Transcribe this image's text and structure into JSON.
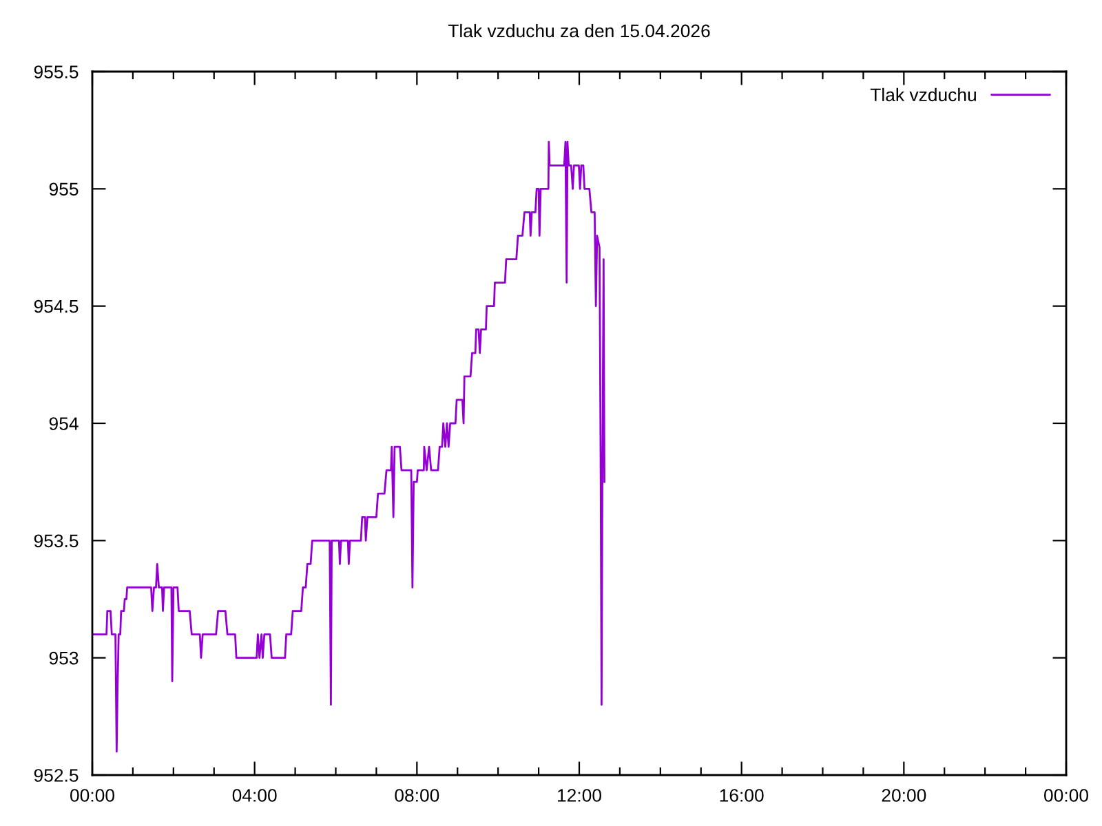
{
  "chart_data": {
    "type": "line",
    "title": "Tlak vzduchu za den 15.04.2026",
    "x": [
      0.0,
      0.35,
      0.37,
      0.45,
      0.48,
      0.57,
      0.6,
      0.62,
      0.65,
      0.69,
      0.71,
      0.78,
      0.8,
      0.84,
      0.86,
      1.45,
      1.48,
      1.52,
      1.57,
      1.6,
      1.64,
      1.72,
      1.74,
      1.77,
      1.95,
      1.97,
      2.0,
      2.1,
      2.13,
      2.4,
      2.45,
      2.65,
      2.68,
      2.72,
      3.05,
      3.1,
      3.28,
      3.33,
      3.52,
      3.55,
      4.05,
      4.08,
      4.12,
      4.17,
      4.2,
      4.24,
      4.38,
      4.42,
      4.75,
      4.78,
      4.9,
      4.94,
      5.15,
      5.19,
      5.26,
      5.3,
      5.38,
      5.42,
      5.85,
      5.88,
      5.9,
      6.08,
      6.1,
      6.13,
      6.3,
      6.32,
      6.35,
      6.62,
      6.65,
      6.72,
      6.74,
      6.78,
      7.0,
      7.04,
      7.2,
      7.25,
      7.36,
      7.38,
      7.42,
      7.45,
      7.58,
      7.62,
      7.86,
      7.89,
      7.92,
      8.0,
      8.02,
      8.17,
      8.18,
      8.24,
      8.3,
      8.35,
      8.52,
      8.56,
      8.62,
      8.65,
      8.7,
      8.74,
      8.78,
      8.82,
      8.95,
      8.98,
      9.12,
      9.15,
      9.17,
      9.32,
      9.36,
      9.44,
      9.46,
      9.52,
      9.55,
      9.58,
      9.7,
      9.72,
      9.9,
      9.92,
      10.17,
      10.2,
      10.45,
      10.49,
      10.6,
      10.65,
      10.78,
      10.8,
      10.83,
      10.92,
      10.95,
      11.0,
      11.02,
      11.05,
      11.24,
      11.25,
      11.27,
      11.63,
      11.66,
      11.69,
      11.71,
      11.74,
      11.8,
      11.84,
      11.87,
      11.99,
      12.02,
      12.05,
      12.1,
      12.13,
      12.25,
      12.3,
      12.38,
      12.41,
      12.44,
      12.5,
      12.53,
      12.55,
      12.57,
      12.6,
      12.62
    ],
    "series": [
      {
        "name": "Tlak vzduchu",
        "color": "#9400d3",
        "values": [
          953.1,
          953.1,
          953.2,
          953.2,
          953.1,
          953.1,
          952.6,
          952.85,
          953.1,
          953.1,
          953.2,
          953.2,
          953.25,
          953.25,
          953.3,
          953.3,
          953.2,
          953.3,
          953.3,
          953.4,
          953.3,
          953.3,
          953.2,
          953.3,
          953.3,
          952.9,
          953.3,
          953.3,
          953.2,
          953.2,
          953.1,
          953.1,
          953.0,
          953.1,
          953.1,
          953.2,
          953.2,
          953.1,
          953.1,
          953.0,
          953.0,
          953.1,
          953.0,
          953.1,
          953.0,
          953.1,
          953.1,
          953.0,
          953.0,
          953.1,
          953.1,
          953.2,
          953.2,
          953.3,
          953.3,
          953.4,
          953.4,
          953.5,
          953.5,
          952.8,
          953.5,
          953.5,
          953.4,
          953.5,
          953.5,
          953.4,
          953.5,
          953.5,
          953.6,
          953.6,
          953.5,
          953.6,
          953.6,
          953.7,
          953.7,
          953.8,
          953.8,
          953.9,
          953.6,
          953.9,
          953.9,
          953.8,
          953.8,
          953.3,
          953.75,
          953.75,
          953.8,
          953.8,
          953.9,
          953.8,
          953.9,
          953.8,
          953.8,
          953.9,
          953.9,
          954.0,
          953.9,
          954.0,
          953.9,
          954.0,
          954.0,
          954.1,
          954.1,
          954.0,
          954.2,
          954.2,
          954.3,
          954.3,
          954.4,
          954.4,
          954.3,
          954.4,
          954.4,
          954.5,
          954.5,
          954.6,
          954.6,
          954.7,
          954.7,
          954.8,
          954.8,
          954.9,
          954.9,
          954.8,
          954.9,
          954.9,
          955.0,
          955.0,
          954.8,
          955.0,
          955.0,
          955.2,
          955.1,
          955.1,
          955.2,
          954.6,
          955.2,
          955.1,
          955.1,
          955.0,
          955.1,
          955.1,
          955.0,
          955.1,
          955.1,
          955.0,
          955.0,
          954.9,
          954.9,
          954.5,
          954.8,
          954.75,
          953.75,
          952.8,
          953.75,
          954.7,
          953.75
        ]
      }
    ],
    "xlim": [
      0,
      24
    ],
    "xticks": [
      {
        "value": 0,
        "label": "00:00"
      },
      {
        "value": 1,
        "label": null
      },
      {
        "value": 2,
        "label": null
      },
      {
        "value": 3,
        "label": null
      },
      {
        "value": 4,
        "label": "04:00"
      },
      {
        "value": 5,
        "label": null
      },
      {
        "value": 6,
        "label": null
      },
      {
        "value": 7,
        "label": null
      },
      {
        "value": 8,
        "label": "08:00"
      },
      {
        "value": 9,
        "label": null
      },
      {
        "value": 10,
        "label": null
      },
      {
        "value": 11,
        "label": null
      },
      {
        "value": 12,
        "label": "12:00"
      },
      {
        "value": 13,
        "label": null
      },
      {
        "value": 14,
        "label": null
      },
      {
        "value": 15,
        "label": null
      },
      {
        "value": 16,
        "label": "16:00"
      },
      {
        "value": 17,
        "label": null
      },
      {
        "value": 18,
        "label": null
      },
      {
        "value": 19,
        "label": null
      },
      {
        "value": 20,
        "label": "20:00"
      },
      {
        "value": 21,
        "label": null
      },
      {
        "value": 22,
        "label": null
      },
      {
        "value": 23,
        "label": null
      },
      {
        "value": 24,
        "label": "00:00"
      }
    ],
    "ylim": [
      952.5,
      955.5
    ],
    "yticks": [
      952.5,
      953,
      953.5,
      954,
      954.5,
      955,
      955.5
    ],
    "legend": "top right"
  }
}
